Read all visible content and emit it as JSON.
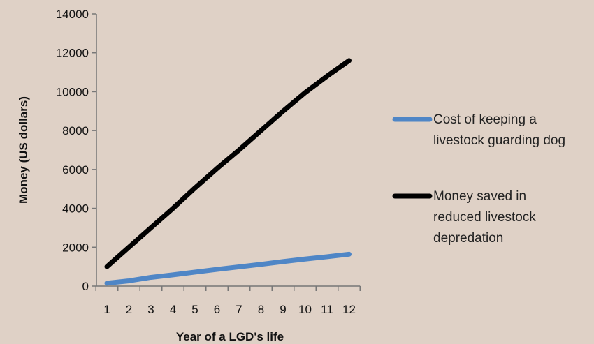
{
  "chart_data": {
    "type": "line",
    "x": [
      1,
      2,
      3,
      4,
      5,
      6,
      7,
      8,
      9,
      10,
      11,
      12
    ],
    "series": [
      {
        "name": "Cost of keeping a livestock guarding dog",
        "legend_lines": [
          "Cost of keeping a",
          "livestock guarding dog"
        ],
        "color": "#4f86c6",
        "values": [
          150,
          270,
          450,
          580,
          720,
          860,
          990,
          1120,
          1260,
          1390,
          1510,
          1640
        ]
      },
      {
        "name": "Money saved in reduced livestock depredation",
        "legend_lines": [
          "Money saved in",
          "reduced livestock",
          "depredation"
        ],
        "color": "#000000",
        "values": [
          1000,
          2000,
          3000,
          4000,
          5050,
          6050,
          7000,
          8000,
          9000,
          9950,
          10800,
          11600
        ]
      }
    ],
    "xlabel": "Year of a LGD's life",
    "ylabel": "Money (US dollars)",
    "ylim": [
      0,
      14000
    ],
    "yticks": [
      0,
      2000,
      4000,
      6000,
      8000,
      10000,
      12000,
      14000
    ],
    "xticks": [
      1,
      2,
      3,
      4,
      5,
      6,
      7,
      8,
      9,
      10,
      11,
      12
    ],
    "grid": false,
    "legend_position": "right"
  }
}
